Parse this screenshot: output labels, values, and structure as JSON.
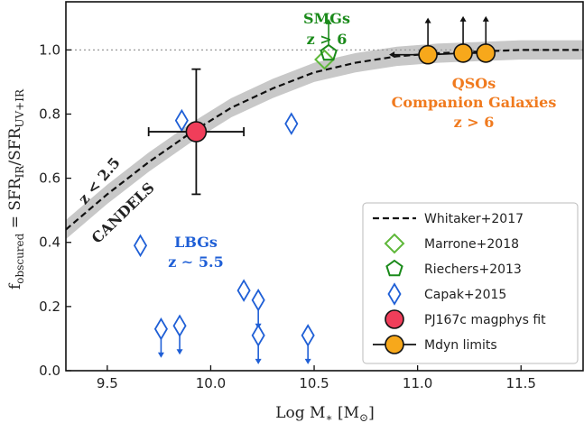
{
  "chart_data": {
    "type": "scatter",
    "xlabel": "Log M∗ [M⊙]",
    "ylabel": "f_obscured = SFR_IR/SFR_UV+IR",
    "ylabel_parts": {
      "main": "f",
      "sub1": "obscured",
      "eq": " = SFR",
      "sub2": "IR",
      "slash": "/SFR",
      "sub3": "UV+IR"
    },
    "xlabel_parts": {
      "main": "Log M",
      "sub": "∗",
      "unit": " [M",
      "unit_sub": "⊙",
      "close": "]"
    },
    "xlim": [
      9.3,
      11.8
    ],
    "ylim": [
      0.0,
      1.15
    ],
    "x_ticks": [
      "9.5",
      "10.0",
      "10.5",
      "11.0",
      "11.5"
    ],
    "y_ticks": [
      "0.0",
      "0.2",
      "0.4",
      "0.6",
      "0.8",
      "1.0"
    ],
    "reference_line_y": 1.0,
    "legend_position": "lower right",
    "series": [
      {
        "name": "Whitaker+2017",
        "style": "dashed-curve-with-band",
        "color": "#111111",
        "band_color": "#c8c8c8",
        "x": [
          9.3,
          9.5,
          9.7,
          9.9,
          10.1,
          10.3,
          10.5,
          10.7,
          10.9,
          11.1,
          11.3,
          11.5,
          11.8
        ],
        "y": [
          0.44,
          0.55,
          0.65,
          0.74,
          0.82,
          0.88,
          0.93,
          0.96,
          0.98,
          0.99,
          0.995,
          1.0,
          1.0
        ],
        "band_halfwidth": 0.03
      },
      {
        "name": "Marrone+2018",
        "marker": "diamond-open",
        "color": "#5fb83a",
        "points": [
          {
            "x": 10.55,
            "y": 0.97
          }
        ]
      },
      {
        "name": "Riechers+2013",
        "marker": "pentagon-open",
        "color": "#1a8a1a",
        "points": [
          {
            "x": 10.57,
            "y": 0.99,
            "upper_arrow": true
          }
        ]
      },
      {
        "name": "Capak+2015",
        "marker": "thin-diamond-open",
        "color": "#1f5fd6",
        "points": [
          {
            "x": 9.66,
            "y": 0.39
          },
          {
            "x": 9.76,
            "y": 0.13,
            "lower_arrow": true
          },
          {
            "x": 9.85,
            "y": 0.14,
            "lower_arrow": true
          },
          {
            "x": 9.86,
            "y": 0.78
          },
          {
            "x": 10.16,
            "y": 0.25
          },
          {
            "x": 10.23,
            "y": 0.22,
            "lower_arrow": true
          },
          {
            "x": 10.23,
            "y": 0.11,
            "lower_arrow": true
          },
          {
            "x": 10.39,
            "y": 0.77
          },
          {
            "x": 10.47,
            "y": 0.11,
            "lower_arrow": true
          }
        ]
      },
      {
        "name": "PJ167c magphys fit",
        "marker": "circle-filled",
        "color": "#f03e5a",
        "points": [
          {
            "x": 9.93,
            "y": 0.745,
            "xerr": [
              0.23,
              0.23
            ],
            "yerr": [
              0.195,
              0.195
            ]
          }
        ]
      },
      {
        "name": "Mdyn limits",
        "marker": "circle-filled",
        "color": "#f7a81b",
        "points": [
          {
            "x": 11.05,
            "y": 0.985,
            "upper_arrow": true,
            "left_arrow": true
          },
          {
            "x": 11.22,
            "y": 0.99,
            "upper_arrow": true
          },
          {
            "x": 11.33,
            "y": 0.99,
            "upper_arrow": true
          }
        ]
      }
    ],
    "annotations": [
      {
        "lines": [
          "SMGs",
          "z > 6"
        ],
        "color": "#1a8a1a"
      },
      {
        "lines": [
          "QSOs",
          "Companion Galaxies",
          "z > 6"
        ],
        "color": "#f07a1e"
      },
      {
        "lines": [
          "LBGs",
          "z ∼ 5.5"
        ],
        "color": "#1f5fd6"
      },
      {
        "lines": [
          "z < 2.5"
        ],
        "color": "#222222"
      },
      {
        "lines": [
          "CANDELS"
        ],
        "color": "#222222"
      }
    ]
  }
}
